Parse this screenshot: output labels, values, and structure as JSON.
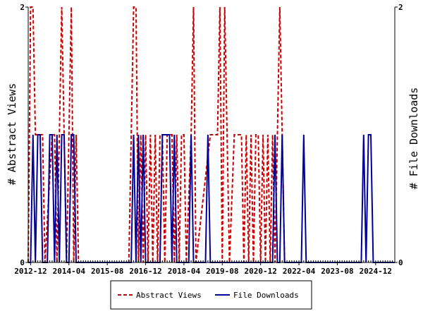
{
  "chart_data": {
    "type": "line",
    "title": "",
    "ylabel_left": "# Abstract Views",
    "ylabel_right": "# File Downloads",
    "ylim_left": [
      0,
      2
    ],
    "ylim_right": [
      0,
      2
    ],
    "y_ticks_left": [
      "0",
      "2"
    ],
    "y_ticks_right": [
      "0",
      "2"
    ],
    "x_tick_labels": [
      "2012-12",
      "2014-04",
      "2015-08",
      "2016-12",
      "2018-04",
      "2019-08",
      "2020-12",
      "2022-04",
      "2023-08",
      "2024-12"
    ],
    "x_start": "2012-11",
    "x_end": "2025-08",
    "grid": false,
    "legend_position": "bottom",
    "colors": {
      "abstract_views": "#cc0000",
      "file_downloads": "#000099"
    },
    "series": [
      {
        "name": "Abstract Views",
        "axis": "left",
        "style": "dashed",
        "points": [
          [
            "2012-11",
            0
          ],
          [
            "2012-12",
            2
          ],
          [
            "2013-01",
            2
          ],
          [
            "2013-02",
            1
          ],
          [
            "2013-03",
            1
          ],
          [
            "2013-04",
            1
          ],
          [
            "2013-05",
            1
          ],
          [
            "2013-06",
            0
          ],
          [
            "2013-09",
            1
          ],
          [
            "2013-10",
            1
          ],
          [
            "2013-11",
            0
          ],
          [
            "2013-12",
            1
          ],
          [
            "2014-01",
            2
          ],
          [
            "2014-02",
            1
          ],
          [
            "2014-03",
            0
          ],
          [
            "2014-04",
            1
          ],
          [
            "2014-05",
            2
          ],
          [
            "2014-06",
            0
          ],
          [
            "2014-07",
            1
          ],
          [
            "2014-08",
            0
          ],
          [
            "2016-05",
            0
          ],
          [
            "2016-06",
            1
          ],
          [
            "2016-07",
            2
          ],
          [
            "2016-08",
            2
          ],
          [
            "2016-09",
            0
          ],
          [
            "2016-10",
            1
          ],
          [
            "2016-11",
            0
          ],
          [
            "2016-12",
            1
          ],
          [
            "2017-01",
            0
          ],
          [
            "2017-02",
            1
          ],
          [
            "2017-03",
            0
          ],
          [
            "2017-04",
            1
          ],
          [
            "2017-05",
            0
          ],
          [
            "2017-06",
            1
          ],
          [
            "2017-07",
            1
          ],
          [
            "2017-08",
            0
          ],
          [
            "2017-09",
            1
          ],
          [
            "2017-10",
            1
          ],
          [
            "2017-11",
            1
          ],
          [
            "2017-12",
            0
          ],
          [
            "2018-01",
            1
          ],
          [
            "2018-02",
            0
          ],
          [
            "2018-03",
            1
          ],
          [
            "2018-04",
            1
          ],
          [
            "2018-05",
            0
          ],
          [
            "2018-07",
            1
          ],
          [
            "2018-08",
            2
          ],
          [
            "2018-09",
            0
          ],
          [
            "2019-03",
            1
          ],
          [
            "2019-04",
            1
          ],
          [
            "2019-05",
            1
          ],
          [
            "2019-06",
            1
          ],
          [
            "2019-07",
            2
          ],
          [
            "2019-08",
            0
          ],
          [
            "2019-09",
            2
          ],
          [
            "2019-10",
            1
          ],
          [
            "2019-11",
            0
          ],
          [
            "2020-01",
            1
          ],
          [
            "2020-02",
            1
          ],
          [
            "2020-03",
            1
          ],
          [
            "2020-04",
            1
          ],
          [
            "2020-05",
            0
          ],
          [
            "2020-06",
            1
          ],
          [
            "2020-07",
            0
          ],
          [
            "2020-08",
            1
          ],
          [
            "2020-09",
            0
          ],
          [
            "2020-10",
            1
          ],
          [
            "2020-11",
            1
          ],
          [
            "2020-12",
            0
          ],
          [
            "2021-01",
            1
          ],
          [
            "2021-02",
            0
          ],
          [
            "2021-03",
            1
          ],
          [
            "2021-04",
            0
          ],
          [
            "2021-05",
            1
          ],
          [
            "2021-06",
            0
          ],
          [
            "2021-08",
            2
          ],
          [
            "2021-09",
            1
          ],
          [
            "2021-10",
            0
          ],
          [
            "2021-11",
            0
          ]
        ]
      },
      {
        "name": "File Downloads",
        "axis": "right",
        "style": "solid",
        "points": [
          [
            "2012-11",
            0
          ],
          [
            "2012-12",
            0
          ],
          [
            "2013-01",
            1
          ],
          [
            "2013-02",
            0
          ],
          [
            "2013-03",
            1
          ],
          [
            "2013-04",
            1
          ],
          [
            "2013-05",
            0
          ],
          [
            "2013-06",
            0
          ],
          [
            "2013-07",
            0
          ],
          [
            "2013-08",
            1
          ],
          [
            "2013-09",
            1
          ],
          [
            "2013-10",
            0
          ],
          [
            "2013-11",
            1
          ],
          [
            "2013-12",
            0
          ],
          [
            "2014-01",
            1
          ],
          [
            "2014-02",
            1
          ],
          [
            "2014-03",
            0
          ],
          [
            "2014-04",
            0
          ],
          [
            "2014-05",
            1
          ],
          [
            "2014-06",
            1
          ],
          [
            "2014-07",
            0
          ],
          [
            "2016-06",
            0
          ],
          [
            "2016-07",
            1
          ],
          [
            "2016-08",
            0
          ],
          [
            "2016-09",
            1
          ],
          [
            "2016-10",
            0
          ],
          [
            "2016-11",
            1
          ],
          [
            "2016-12",
            0
          ],
          [
            "2017-06",
            0
          ],
          [
            "2017-07",
            1
          ],
          [
            "2017-08",
            1
          ],
          [
            "2017-09",
            1
          ],
          [
            "2017-10",
            1
          ],
          [
            "2017-11",
            0
          ],
          [
            "2017-12",
            1
          ],
          [
            "2018-01",
            0
          ],
          [
            "2018-06",
            0
          ],
          [
            "2018-07",
            1
          ],
          [
            "2018-08",
            0
          ],
          [
            "2018-09",
            0
          ],
          [
            "2019-01",
            0
          ],
          [
            "2019-02",
            1
          ],
          [
            "2019-03",
            0
          ],
          [
            "2019-04",
            0
          ],
          [
            "2021-05",
            0
          ],
          [
            "2021-06",
            1
          ],
          [
            "2021-07",
            0
          ],
          [
            "2021-08",
            0
          ],
          [
            "2021-09",
            1
          ],
          [
            "2021-10",
            0
          ],
          [
            "2021-11",
            0
          ],
          [
            "2022-05",
            0
          ],
          [
            "2022-06",
            1
          ],
          [
            "2022-07",
            0
          ],
          [
            "2022-08",
            0
          ],
          [
            "2024-06",
            0
          ],
          [
            "2024-07",
            1
          ],
          [
            "2024-08",
            0
          ],
          [
            "2024-09",
            1
          ],
          [
            "2024-10",
            1
          ],
          [
            "2024-11",
            0
          ],
          [
            "2025-08",
            0
          ]
        ]
      }
    ]
  }
}
